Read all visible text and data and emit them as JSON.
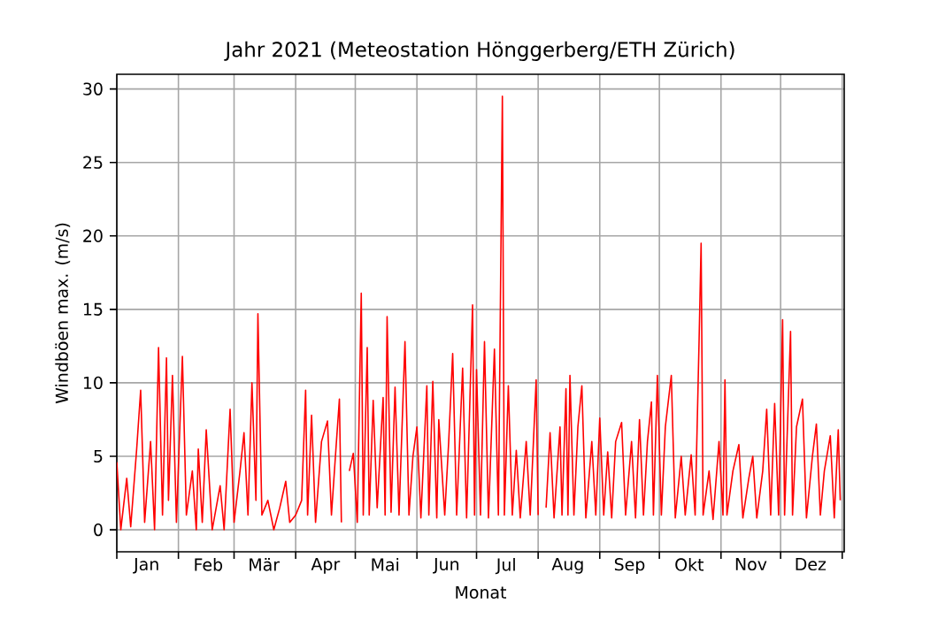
{
  "chart_data": {
    "type": "line",
    "title": "Jahr 2021   (Meteostation Hönggerberg/ETH Zürich)",
    "xlabel": "Monat",
    "ylabel": "Windböen max. (m/s)",
    "x": [
      "2021-01-01",
      "2021-01-03",
      "2021-01-06",
      "2021-01-08",
      "2021-01-11",
      "2021-01-13",
      "2021-01-15",
      "2021-01-18",
      "2021-01-20",
      "2021-01-22",
      "2021-01-24",
      "2021-01-26",
      "2021-01-27",
      "2021-01-29",
      "2021-01-31",
      "2021-02-03",
      "2021-02-05",
      "2021-02-08",
      "2021-02-10",
      "2021-02-11",
      "2021-02-13",
      "2021-02-15",
      "2021-02-18",
      "2021-02-22",
      "2021-02-24",
      "2021-02-27",
      "2021-03-01",
      "2021-03-04",
      "2021-03-06",
      "2021-03-08",
      "2021-03-10",
      "2021-03-12",
      "2021-03-13",
      "2021-03-15",
      "2021-03-18",
      "2021-03-21",
      "2021-03-24",
      "2021-03-27",
      "2021-03-29",
      "2021-04-01",
      "2021-04-04",
      "2021-04-06",
      "2021-04-07",
      "2021-04-09",
      "2021-04-11",
      "2021-04-14",
      "2021-04-17",
      "2021-04-19",
      "2021-04-21",
      "2021-04-23",
      "2021-04-24",
      "2021-04-25",
      "2021-04-28",
      "2021-04-30",
      "2021-05-02",
      "2021-05-04",
      "2021-05-05",
      "2021-05-07",
      "2021-05-08",
      "2021-05-10",
      "2021-05-12",
      "2021-05-15",
      "2021-05-16",
      "2021-05-17",
      "2021-05-19",
      "2021-05-21",
      "2021-05-23",
      "2021-05-26",
      "2021-05-28",
      "2021-05-30",
      "2021-06-01",
      "2021-06-03",
      "2021-06-06",
      "2021-06-07",
      "2021-06-09",
      "2021-06-11",
      "2021-06-12",
      "2021-06-15",
      "2021-06-17",
      "2021-06-19",
      "2021-06-21",
      "2021-06-24",
      "2021-06-26",
      "2021-06-29",
      "2021-06-30",
      "2021-07-01",
      "2021-07-03",
      "2021-07-05",
      "2021-07-07",
      "2021-07-10",
      "2021-07-12",
      "2021-07-14",
      "2021-07-15",
      "2021-07-17",
      "2021-07-19",
      "2021-07-21",
      "2021-07-23",
      "2021-07-26",
      "2021-07-28",
      "2021-07-31",
      "2021-08-01",
      "2021-08-02",
      "2021-08-05",
      "2021-08-07",
      "2021-08-09",
      "2021-08-12",
      "2021-08-13",
      "2021-08-15",
      "2021-08-16",
      "2021-08-17",
      "2021-08-19",
      "2021-08-21",
      "2021-08-23",
      "2021-08-25",
      "2021-08-28",
      "2021-08-30",
      "2021-09-01",
      "2021-09-03",
      "2021-09-05",
      "2021-09-07",
      "2021-09-09",
      "2021-09-12",
      "2021-09-14",
      "2021-09-17",
      "2021-09-19",
      "2021-09-21",
      "2021-09-23",
      "2021-09-25",
      "2021-09-27",
      "2021-09-28",
      "2021-09-30",
      "2021-10-02",
      "2021-10-04",
      "2021-10-07",
      "2021-10-09",
      "2021-10-12",
      "2021-10-14",
      "2021-10-17",
      "2021-10-19",
      "2021-10-21",
      "2021-10-22",
      "2021-10-23",
      "2021-10-26",
      "2021-10-28",
      "2021-10-31",
      "2021-11-02",
      "2021-11-03",
      "2021-11-04",
      "2021-11-07",
      "2021-11-10",
      "2021-11-12",
      "2021-11-15",
      "2021-11-17",
      "2021-11-19",
      "2021-11-22",
      "2021-11-24",
      "2021-11-26",
      "2021-11-28",
      "2021-11-30",
      "2021-12-02",
      "2021-12-03",
      "2021-12-06",
      "2021-12-07",
      "2021-12-09",
      "2021-12-12",
      "2021-12-14",
      "2021-12-17",
      "2021-12-19",
      "2021-12-21",
      "2021-12-23",
      "2021-12-26",
      "2021-12-28",
      "2021-12-30",
      "2021-12-31"
    ],
    "values": [
      4.6,
      0,
      3.5,
      0.2,
      5.5,
      9.5,
      0.5,
      6,
      0,
      12.4,
      1,
      11.7,
      2,
      10.5,
      0.5,
      11.8,
      1,
      4,
      0,
      5.5,
      0.5,
      6.8,
      0,
      3,
      0,
      8.2,
      0.5,
      4,
      6.6,
      1,
      10,
      2,
      14.7,
      1,
      2,
      0,
      1.5,
      3.3,
      0.5,
      1,
      2,
      9.5,
      1,
      7.8,
      0.5,
      6,
      7.4,
      1,
      5,
      8.9,
      0.5,
      null,
      4,
      5.2,
      0.5,
      16.1,
      1,
      12.4,
      1,
      8.8,
      1.5,
      9,
      1,
      14.5,
      1.2,
      9.7,
      1,
      12.8,
      1,
      5,
      7,
      0.8,
      9.8,
      1,
      10.1,
      0.8,
      7.5,
      1,
      6,
      12,
      1,
      11,
      0.8,
      15.3,
      1,
      10.9,
      1,
      12.8,
      0.8,
      12.3,
      1,
      29.5,
      1,
      9.8,
      1,
      5.4,
      0.8,
      6,
      1,
      10.2,
      1,
      null,
      1.5,
      6.6,
      0.8,
      7,
      1,
      9.6,
      1,
      10.5,
      1,
      7,
      9.8,
      0.8,
      6,
      1,
      7.6,
      1,
      5.3,
      0.8,
      6,
      7.3,
      1,
      6,
      0.8,
      7.5,
      1,
      6,
      8.7,
      1,
      10.5,
      1,
      7,
      10.5,
      0.8,
      5,
      1,
      5.1,
      1,
      13,
      19.5,
      1,
      4,
      0.7,
      6,
      1,
      10.2,
      1,
      4,
      5.8,
      0.8,
      3.5,
      5,
      0.8,
      4,
      8.2,
      1,
      8.6,
      1,
      14.3,
      1,
      13.5,
      1,
      7,
      8.9,
      0.8,
      5,
      7.2,
      1,
      4,
      6.4,
      0.8,
      6.8,
      2
    ],
    "color": "#ff0000",
    "xlim": [
      "2021-01-01",
      "2022-01-02"
    ],
    "xticks": [
      {
        "value": "2021-01-01",
        "label": null
      },
      {
        "value": "2021-02-01",
        "label": null
      },
      {
        "value": "2021-03-01",
        "label": null
      },
      {
        "value": "2021-04-01",
        "label": null
      },
      {
        "value": "2021-05-01",
        "label": null
      },
      {
        "value": "2021-06-01",
        "label": null
      },
      {
        "value": "2021-07-01",
        "label": null
      },
      {
        "value": "2021-08-01",
        "label": null
      },
      {
        "value": "2021-09-01",
        "label": null
      },
      {
        "value": "2021-10-01",
        "label": null
      },
      {
        "value": "2021-11-01",
        "label": null
      },
      {
        "value": "2021-12-01",
        "label": null
      },
      {
        "value": "2022-01-01",
        "label": null
      },
      {
        "value": "2021-01-16",
        "label": "Jan"
      },
      {
        "value": "2021-02-16",
        "label": "Feb"
      },
      {
        "value": "2021-03-16",
        "label": "Mär"
      },
      {
        "value": "2021-04-16",
        "label": "Apr"
      },
      {
        "value": "2021-05-16",
        "label": "Mai"
      },
      {
        "value": "2021-06-16",
        "label": "Jun"
      },
      {
        "value": "2021-07-16",
        "label": "Jul"
      },
      {
        "value": "2021-08-16",
        "label": "Aug"
      },
      {
        "value": "2021-09-16",
        "label": "Sep"
      },
      {
        "value": "2021-10-16",
        "label": "Okt"
      },
      {
        "value": "2021-11-16",
        "label": "Nov"
      },
      {
        "value": "2021-12-16",
        "label": "Dez"
      }
    ],
    "ylim": [
      -1.5,
      31
    ],
    "yticks": [
      0,
      5,
      10,
      15,
      20,
      25,
      30
    ],
    "grid": true
  }
}
